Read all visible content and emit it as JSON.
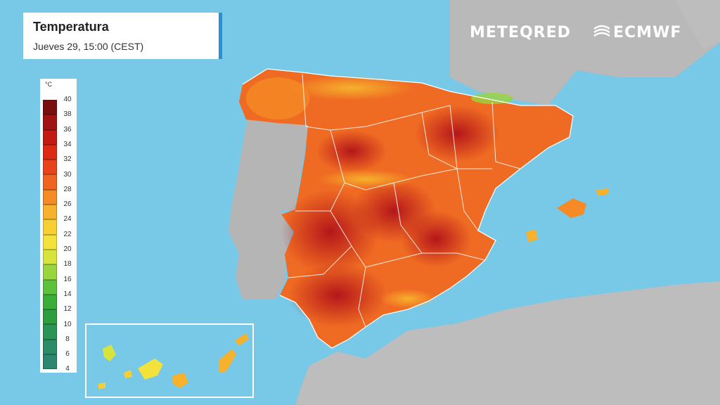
{
  "header": {
    "title": "Temperatura",
    "subtitle": "Jueves 29, 15:00 (CEST)"
  },
  "branding": {
    "meteored": "METEQRED",
    "ecmwf": "ECMWF",
    "ecmwf_icon": "ecmwf-logo-icon"
  },
  "legend": {
    "unit": "°C",
    "ticks": [
      "40",
      "38",
      "36",
      "34",
      "32",
      "30",
      "28",
      "26",
      "24",
      "22",
      "20",
      "18",
      "16",
      "14",
      "12",
      "10",
      "8",
      "6",
      "4"
    ],
    "colors": [
      "#7a0f0f",
      "#a11414",
      "#c41b15",
      "#dd2a14",
      "#e8431a",
      "#ef6420",
      "#f58a26",
      "#f6b12d",
      "#f8cf33",
      "#f4e23c",
      "#d8e43e",
      "#9ad43f",
      "#5ec13d",
      "#3aae39",
      "#2c9e3e",
      "#2a9356",
      "#2b8c66",
      "#2b8770"
    ]
  },
  "colors": {
    "sea": "#78c8e8",
    "land_other": "#b8b8b8",
    "accent": "#2a8fd4"
  }
}
